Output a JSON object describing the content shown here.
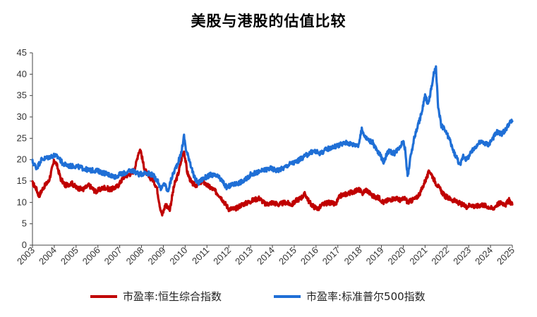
{
  "chart_data": {
    "type": "line",
    "title": "美股与港股的估值比较",
    "xlabel": "",
    "ylabel": "",
    "ylim": [
      0,
      45
    ],
    "yticks": [
      0,
      5,
      10,
      15,
      20,
      25,
      30,
      35,
      40,
      45
    ],
    "xlim": [
      2003,
      2025
    ],
    "xticks": [
      "2003",
      "2004",
      "2005",
      "2006",
      "2007",
      "2008",
      "2009",
      "2010",
      "2011",
      "2012",
      "2013",
      "2014",
      "2015",
      "2016",
      "2017",
      "2018",
      "2019",
      "2020",
      "2021",
      "2022",
      "2023",
      "2024",
      "2025"
    ],
    "grid": false,
    "legend_position": "bottom",
    "series": [
      {
        "name": "市盈率:恒生综合指数",
        "color": "#C00000",
        "x": [
          2003.0,
          2003.15,
          2003.3,
          2003.5,
          2003.75,
          2004.0,
          2004.1,
          2004.3,
          2004.5,
          2004.8,
          2005.0,
          2005.3,
          2005.6,
          2005.9,
          2006.0,
          2006.3,
          2006.6,
          2006.9,
          2007.0,
          2007.2,
          2007.4,
          2007.6,
          2007.75,
          2007.85,
          2007.95,
          2008.1,
          2008.3,
          2008.5,
          2008.7,
          2008.85,
          2008.95,
          2009.1,
          2009.3,
          2009.5,
          2009.7,
          2009.85,
          2009.95,
          2010.1,
          2010.3,
          2010.5,
          2010.8,
          2011.0,
          2011.3,
          2011.6,
          2011.8,
          2012.0,
          2012.3,
          2012.6,
          2012.9,
          2013.1,
          2013.4,
          2013.7,
          2014.0,
          2014.3,
          2014.6,
          2014.9,
          2015.1,
          2015.3,
          2015.5,
          2015.7,
          2015.9,
          2016.1,
          2016.3,
          2016.6,
          2016.9,
          2017.1,
          2017.4,
          2017.7,
          2018.0,
          2018.1,
          2018.3,
          2018.6,
          2018.9,
          2019.1,
          2019.3,
          2019.6,
          2019.9,
          2020.1,
          2020.2,
          2020.4,
          2020.6,
          2020.8,
          2021.0,
          2021.1,
          2021.2,
          2021.35,
          2021.5,
          2021.7,
          2021.9,
          2022.1,
          2022.3,
          2022.5,
          2022.7,
          2022.9,
          2023.1,
          2023.3,
          2023.6,
          2023.9,
          2024.1,
          2024.3,
          2024.5,
          2024.7,
          2024.85,
          2025.0
        ],
        "y": [
          14.5,
          13.5,
          11.5,
          13.5,
          15.0,
          19.8,
          19.0,
          15.5,
          14.0,
          14.5,
          13.5,
          13.0,
          14.0,
          12.5,
          12.8,
          13.5,
          13.0,
          13.8,
          14.5,
          16.0,
          16.5,
          17.0,
          19.0,
          21.5,
          22.5,
          18.5,
          16.0,
          15.5,
          13.5,
          9.0,
          7.0,
          9.5,
          8.5,
          14.0,
          17.0,
          20.5,
          22.0,
          17.0,
          14.5,
          14.0,
          15.0,
          14.0,
          13.0,
          11.5,
          10.0,
          8.5,
          8.5,
          9.5,
          10.0,
          10.5,
          11.0,
          9.5,
          10.0,
          9.5,
          10.0,
          9.5,
          10.5,
          11.0,
          12.0,
          10.0,
          9.0,
          8.5,
          9.5,
          10.0,
          9.5,
          11.5,
          12.0,
          12.5,
          13.0,
          12.0,
          13.0,
          11.5,
          11.0,
          10.0,
          10.5,
          11.0,
          10.5,
          11.0,
          10.0,
          10.5,
          11.0,
          12.5,
          15.0,
          16.0,
          17.5,
          16.0,
          14.5,
          13.0,
          11.5,
          11.0,
          10.5,
          10.0,
          9.5,
          9.0,
          9.5,
          9.0,
          9.5,
          9.0,
          8.5,
          9.5,
          10.0,
          9.5,
          10.5,
          9.5
        ]
      },
      {
        "name": "市盈率:标准普尔500指数",
        "color": "#1F6FD6",
        "x": [
          2003.0,
          2003.2,
          2003.4,
          2003.7,
          2004.0,
          2004.2,
          2004.4,
          2004.7,
          2005.0,
          2005.3,
          2005.6,
          2005.9,
          2006.2,
          2006.5,
          2006.8,
          2007.0,
          2007.3,
          2007.6,
          2007.9,
          2008.2,
          2008.5,
          2008.75,
          2008.9,
          2009.05,
          2009.2,
          2009.4,
          2009.6,
          2009.8,
          2009.95,
          2010.05,
          2010.2,
          2010.4,
          2010.6,
          2010.8,
          2011.0,
          2011.2,
          2011.5,
          2011.7,
          2011.9,
          2012.1,
          2012.4,
          2012.7,
          2013.0,
          2013.3,
          2013.6,
          2013.9,
          2014.2,
          2014.5,
          2014.8,
          2015.1,
          2015.4,
          2015.7,
          2015.9,
          2016.2,
          2016.5,
          2016.8,
          2017.1,
          2017.4,
          2017.7,
          2017.95,
          2018.1,
          2018.3,
          2018.6,
          2018.8,
          2018.95,
          2019.1,
          2019.3,
          2019.6,
          2019.9,
          2020.0,
          2020.1,
          2020.2,
          2020.35,
          2020.5,
          2020.7,
          2020.85,
          2021.0,
          2021.15,
          2021.3,
          2021.4,
          2021.5,
          2021.6,
          2021.75,
          2021.9,
          2022.1,
          2022.3,
          2022.5,
          2022.6,
          2022.75,
          2022.9,
          2023.1,
          2023.3,
          2023.5,
          2023.7,
          2023.9,
          2024.1,
          2024.3,
          2024.5,
          2024.7,
          2024.85,
          2025.0
        ],
        "y": [
          19.5,
          18.0,
          20.0,
          20.5,
          21.0,
          20.5,
          19.0,
          18.5,
          18.5,
          18.0,
          17.5,
          17.5,
          17.0,
          16.5,
          16.0,
          16.5,
          17.0,
          17.5,
          16.5,
          17.0,
          16.5,
          15.0,
          13.0,
          14.5,
          12.5,
          16.0,
          18.5,
          21.0,
          25.5,
          22.0,
          20.0,
          16.0,
          14.5,
          15.5,
          16.0,
          16.5,
          16.0,
          15.0,
          13.5,
          14.0,
          14.5,
          15.0,
          16.5,
          17.0,
          17.5,
          18.0,
          17.5,
          18.0,
          19.0,
          19.5,
          20.5,
          21.5,
          22.0,
          21.5,
          22.5,
          23.0,
          23.5,
          24.0,
          23.5,
          23.5,
          27.0,
          25.0,
          24.0,
          22.0,
          21.0,
          19.5,
          22.0,
          21.5,
          23.5,
          24.5,
          22.0,
          16.0,
          21.0,
          25.0,
          28.5,
          31.0,
          35.0,
          33.0,
          37.0,
          40.0,
          41.5,
          32.0,
          28.0,
          27.0,
          25.0,
          22.0,
          20.0,
          18.5,
          21.0,
          20.0,
          21.5,
          23.0,
          24.0,
          24.0,
          23.5,
          25.0,
          26.5,
          26.0,
          27.0,
          28.5,
          29.0
        ]
      }
    ]
  }
}
